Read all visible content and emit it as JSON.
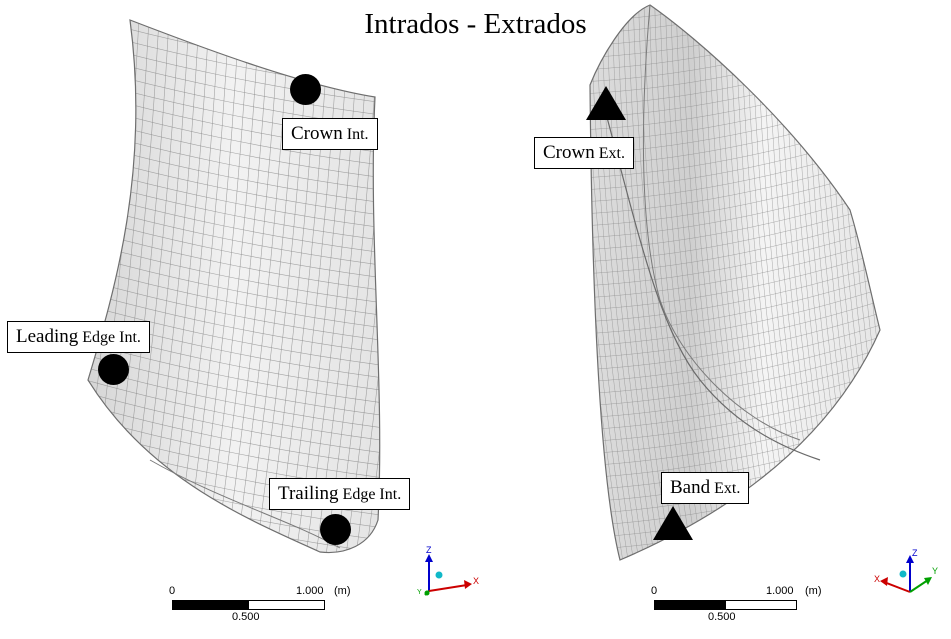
{
  "title": "Intrados - Extrados",
  "labels": {
    "crown_int": {
      "main": "Crown",
      "sub": "Int."
    },
    "leading_int": {
      "main": "Leading",
      "sub": "Edge Int."
    },
    "trailing_int": {
      "main": "Trailing",
      "sub": "Edge Int."
    },
    "crown_ext": {
      "main": "Crown",
      "sub": "Ext."
    },
    "band_ext": {
      "main": "Band",
      "sub": "Ext."
    }
  },
  "scale_left": {
    "zero": "0",
    "max": "1.000",
    "unit": "(m)",
    "mid": "0.500"
  },
  "scale_right": {
    "zero": "0",
    "max": "1.000",
    "unit": "(m)",
    "mid": "0.500"
  },
  "triad_left": {
    "z": "Z",
    "x": "X",
    "y": "Y"
  },
  "triad_right": {
    "z": "Z",
    "x": "X",
    "y": "Y"
  },
  "colors": {
    "mesh_fill": "#ececec",
    "mesh_line": "#8a8a8a",
    "marker": "#000000",
    "axis_z": "#0000cc",
    "axis_x": "#cc0000",
    "axis_y": "#00a000"
  }
}
